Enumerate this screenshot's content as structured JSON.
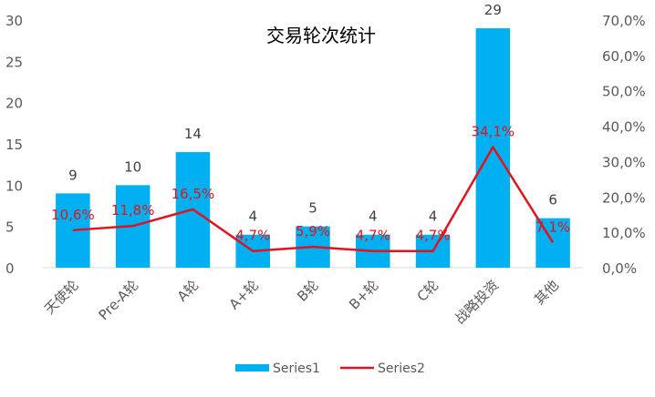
{
  "chart_data": {
    "type": "bar",
    "title": "交易轮次统计",
    "categories": [
      "天使轮",
      "Pre-A轮",
      "A轮",
      "A+轮",
      "B轮",
      "B+轮",
      "C轮",
      "战略投资",
      "其他"
    ],
    "series": [
      {
        "name": "Series1",
        "type": "bar",
        "axis": "left",
        "color": "#00b0f0",
        "values": [
          9,
          10,
          14,
          4,
          5,
          4,
          4,
          29,
          6
        ],
        "labels": [
          "9",
          "10",
          "14",
          "4",
          "5",
          "4",
          "4",
          "29",
          "6"
        ]
      },
      {
        "name": "Series2",
        "type": "line",
        "axis": "right",
        "color": "#e0141e",
        "values": [
          10.6,
          11.8,
          16.5,
          4.7,
          5.9,
          4.7,
          4.7,
          34.1,
          7.1
        ],
        "labels": [
          "10,6%",
          "11,8%",
          "16,5%",
          "4,7%",
          "5,9%",
          "4,7%",
          "4,7%",
          "34,1%",
          "7,1%"
        ]
      }
    ],
    "y_left": {
      "min": 0,
      "max": 30,
      "ticks": [
        0,
        5,
        10,
        15,
        20,
        25,
        30
      ],
      "tick_labels": [
        "0",
        "5",
        "10",
        "15",
        "20",
        "25",
        "30"
      ]
    },
    "y_right": {
      "min": 0,
      "max": 70,
      "ticks": [
        0,
        10,
        20,
        30,
        40,
        50,
        60,
        70
      ],
      "tick_labels": [
        "0,0%",
        "10,0%",
        "20,0%",
        "30,0%",
        "40,0%",
        "50,0%",
        "60,0%",
        "70,0%"
      ]
    },
    "grid": false,
    "legend_position": "bottom"
  }
}
